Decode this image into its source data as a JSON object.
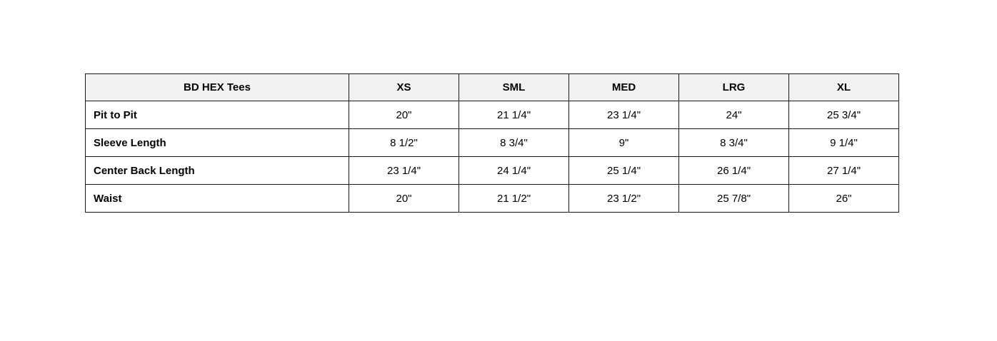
{
  "chart_data": {
    "type": "table",
    "title": "BD HEX Tees",
    "columns": [
      "BD HEX Tees",
      "XS",
      "SML",
      "MED",
      "LRG",
      "XL"
    ],
    "rows": [
      [
        "Pit to Pit",
        "20\"",
        "21 1/4\"",
        "23 1/4\"",
        "24\"",
        "25 3/4\""
      ],
      [
        "Sleeve Length",
        "8 1/2\"",
        "8 3/4\"",
        "9\"",
        "8 3/4\"",
        "9 1/4\""
      ],
      [
        "Center Back Length",
        "23 1/4\"",
        "24 1/4\"",
        "25 1/4\"",
        "26 1/4\"",
        "27 1/4\""
      ],
      [
        "Waist",
        "20\"",
        "21 1/2\"",
        "23 1/2\"",
        "25 7/8\"",
        "26\""
      ]
    ],
    "layout": {
      "header_row_shaded": true,
      "first_column_bold": true,
      "value_alignment": "center",
      "label_alignment": "left"
    }
  },
  "colors": {
    "header_bg": "#f2f2f2",
    "border": "#1a1a1a",
    "text": "#000000",
    "page_bg": "#ffffff"
  }
}
